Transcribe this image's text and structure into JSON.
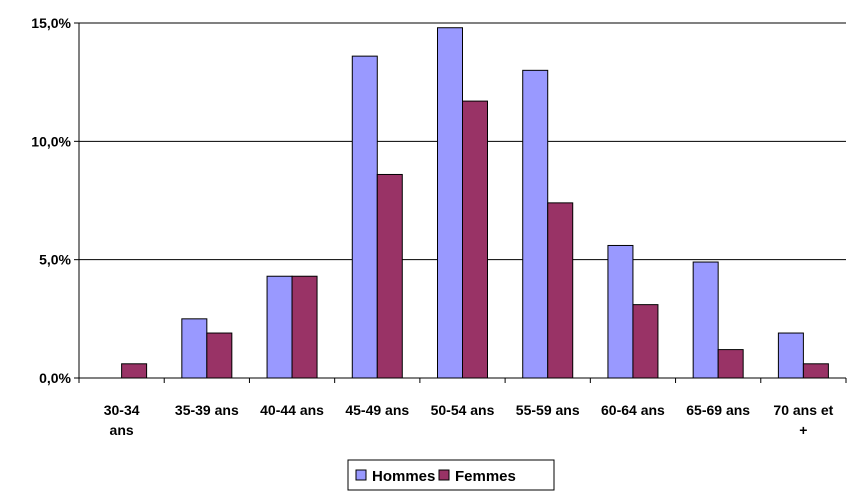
{
  "chart_data": {
    "type": "bar",
    "categories": [
      "30-34 ans",
      "35-39 ans",
      "40-44 ans",
      "45-49 ans",
      "50-54 ans",
      "55-59 ans",
      "60-64 ans",
      "65-69 ans",
      "70 ans et +"
    ],
    "category_lines": [
      [
        "30-34",
        "ans"
      ],
      [
        "35-39 ans"
      ],
      [
        "40-44 ans"
      ],
      [
        "45-49 ans"
      ],
      [
        "50-54 ans"
      ],
      [
        "55-59 ans"
      ],
      [
        "60-64 ans"
      ],
      [
        "65-69 ans"
      ],
      [
        "70 ans et",
        "+"
      ]
    ],
    "series": [
      {
        "name": "Hommes",
        "color": "#9999ff",
        "values": [
          0.0,
          2.5,
          4.3,
          13.6,
          14.8,
          13.0,
          5.6,
          4.9,
          1.9
        ]
      },
      {
        "name": "Femmes",
        "color": "#993366",
        "values": [
          0.6,
          1.9,
          4.3,
          8.6,
          11.7,
          7.4,
          3.1,
          1.2,
          0.6
        ]
      }
    ],
    "ylim": [
      0,
      15
    ],
    "yticks": [
      0,
      5,
      10,
      15
    ],
    "ytick_labels": [
      "0,0%",
      "5,0%",
      "10,0%",
      "15,0%"
    ],
    "grid": true,
    "legend_position": "bottom-center",
    "title": "",
    "xlabel": "",
    "ylabel": ""
  }
}
